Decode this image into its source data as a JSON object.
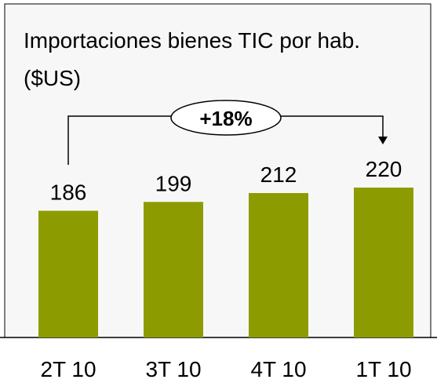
{
  "chart_data": {
    "type": "bar",
    "title": "Importaciones bienes TIC por hab. ($US)",
    "categories": [
      "2T 10",
      "3T 10",
      "4T 10",
      "1T 10"
    ],
    "values": [
      186,
      199,
      212,
      220
    ],
    "color": "#8c9c00",
    "annotation": "+18%"
  }
}
